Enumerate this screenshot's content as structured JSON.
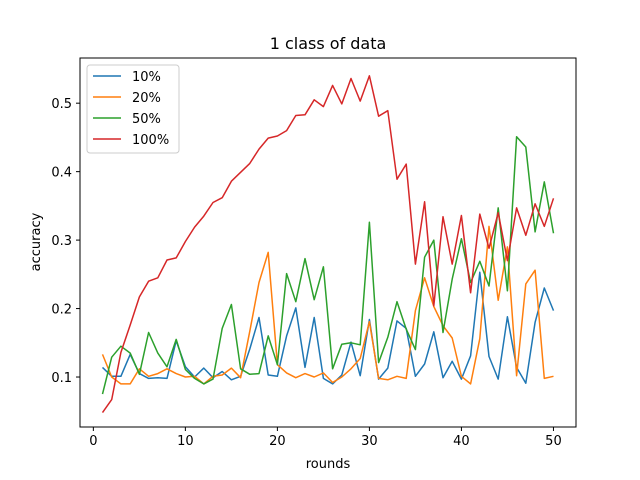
{
  "chart_data": {
    "type": "line",
    "title": "1 class of data",
    "xlabel": "rounds",
    "ylabel": "accuracy",
    "xlim": [
      -1.45,
      52.45
    ],
    "ylim": [
      0.027,
      0.566
    ],
    "xticks": [
      0,
      10,
      20,
      30,
      40,
      50
    ],
    "yticks": [
      0.1,
      0.2,
      0.3,
      0.4,
      0.5
    ],
    "ytick_labels": [
      "0.1",
      "0.2",
      "0.3",
      "0.4",
      "0.5"
    ],
    "grid": false,
    "legend": "top-left",
    "x": [
      1,
      2,
      3,
      4,
      5,
      6,
      7,
      8,
      9,
      10,
      11,
      12,
      13,
      14,
      15,
      16,
      17,
      18,
      19,
      20,
      21,
      22,
      23,
      24,
      25,
      26,
      27,
      28,
      29,
      30,
      31,
      32,
      33,
      34,
      35,
      36,
      37,
      38,
      39,
      40,
      41,
      42,
      43,
      44,
      45,
      46,
      47,
      48,
      49,
      50
    ],
    "series": [
      {
        "name": "10%",
        "color": "#1f77b4",
        "values": [
          0.114,
          0.101,
          0.101,
          0.133,
          0.105,
          0.098,
          0.099,
          0.098,
          0.153,
          0.115,
          0.1,
          0.113,
          0.099,
          0.108,
          0.096,
          0.101,
          0.141,
          0.187,
          0.103,
          0.101,
          0.16,
          0.201,
          0.114,
          0.187,
          0.098,
          0.09,
          0.103,
          0.151,
          0.102,
          0.184,
          0.097,
          0.113,
          0.182,
          0.171,
          0.101,
          0.119,
          0.166,
          0.099,
          0.123,
          0.097,
          0.131,
          0.253,
          0.13,
          0.097,
          0.188,
          0.114,
          0.091,
          0.18,
          0.23,
          0.197
        ]
      },
      {
        "name": "20%",
        "color": "#ff7f0e",
        "values": [
          0.133,
          0.1,
          0.09,
          0.09,
          0.112,
          0.101,
          0.105,
          0.112,
          0.105,
          0.1,
          0.101,
          0.09,
          0.101,
          0.103,
          0.113,
          0.099,
          0.167,
          0.238,
          0.282,
          0.118,
          0.106,
          0.099,
          0.105,
          0.1,
          0.106,
          0.092,
          0.1,
          0.112,
          0.127,
          0.181,
          0.098,
          0.096,
          0.101,
          0.098,
          0.197,
          0.245,
          0.203,
          0.175,
          0.157,
          0.101,
          0.09,
          0.156,
          0.32,
          0.212,
          0.29,
          0.102,
          0.236,
          0.256,
          0.098,
          0.101
        ]
      },
      {
        "name": "50%",
        "color": "#2ca02c",
        "values": [
          0.075,
          0.129,
          0.145,
          0.135,
          0.104,
          0.165,
          0.135,
          0.115,
          0.155,
          0.111,
          0.098,
          0.09,
          0.097,
          0.171,
          0.206,
          0.112,
          0.104,
          0.105,
          0.16,
          0.118,
          0.251,
          0.21,
          0.273,
          0.213,
          0.261,
          0.112,
          0.148,
          0.15,
          0.147,
          0.326,
          0.121,
          0.158,
          0.21,
          0.17,
          0.14,
          0.275,
          0.3,
          0.165,
          0.243,
          0.302,
          0.238,
          0.269,
          0.233,
          0.347,
          0.226,
          0.451,
          0.436,
          0.312,
          0.385,
          0.31
        ]
      },
      {
        "name": "100%",
        "color": "#d62728",
        "values": [
          0.048,
          0.067,
          0.136,
          0.176,
          0.217,
          0.24,
          0.245,
          0.271,
          0.274,
          0.298,
          0.319,
          0.335,
          0.355,
          0.362,
          0.386,
          0.399,
          0.412,
          0.433,
          0.449,
          0.452,
          0.46,
          0.482,
          0.483,
          0.505,
          0.495,
          0.526,
          0.499,
          0.536,
          0.503,
          0.54,
          0.481,
          0.489,
          0.389,
          0.411,
          0.265,
          0.356,
          0.204,
          0.334,
          0.265,
          0.336,
          0.223,
          0.338,
          0.288,
          0.34,
          0.27,
          0.347,
          0.307,
          0.353,
          0.32,
          0.361
        ]
      }
    ]
  }
}
